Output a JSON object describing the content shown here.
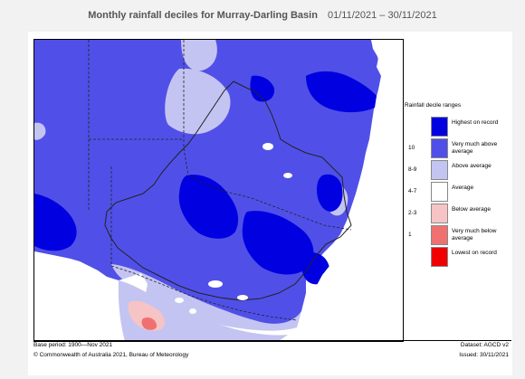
{
  "header": {
    "title": "Monthly rainfall deciles for Murray-Darling Basin",
    "date_range": "01/11/2021 – 30/11/2021"
  },
  "legend": {
    "title": "Rainfall decile ranges",
    "items": [
      {
        "code": "",
        "label": "Highest on record",
        "color": "#0000e0"
      },
      {
        "code": "10",
        "label": "Very much above average",
        "color": "#5050e8"
      },
      {
        "code": "8-9",
        "label": "Above average",
        "color": "#c4c4f2"
      },
      {
        "code": "4-7",
        "label": "Average",
        "color": "#ffffff"
      },
      {
        "code": "2-3",
        "label": "Below average",
        "color": "#f6c4c4"
      },
      {
        "code": "1",
        "label": "Very much below average",
        "color": "#f07070"
      },
      {
        "code": "",
        "label": "Lowest on record",
        "color": "#f00000"
      }
    ]
  },
  "footer": {
    "base_period": "Base period: 1900—Nov 2021",
    "dataset": "Dataset: AGCD v2",
    "copyright": "© Commonwealth of Australia 2021, Bureau of Meteorology",
    "issued": "Issued: 30/11/2021"
  },
  "colors": {
    "highest": "#0000e0",
    "very_much_above": "#5050e8",
    "above": "#c4c4f2",
    "average": "#ffffff",
    "below": "#f6c4c4",
    "very_much_below": "#f07070",
    "lowest": "#f00000",
    "background": "#f2f2f2"
  }
}
